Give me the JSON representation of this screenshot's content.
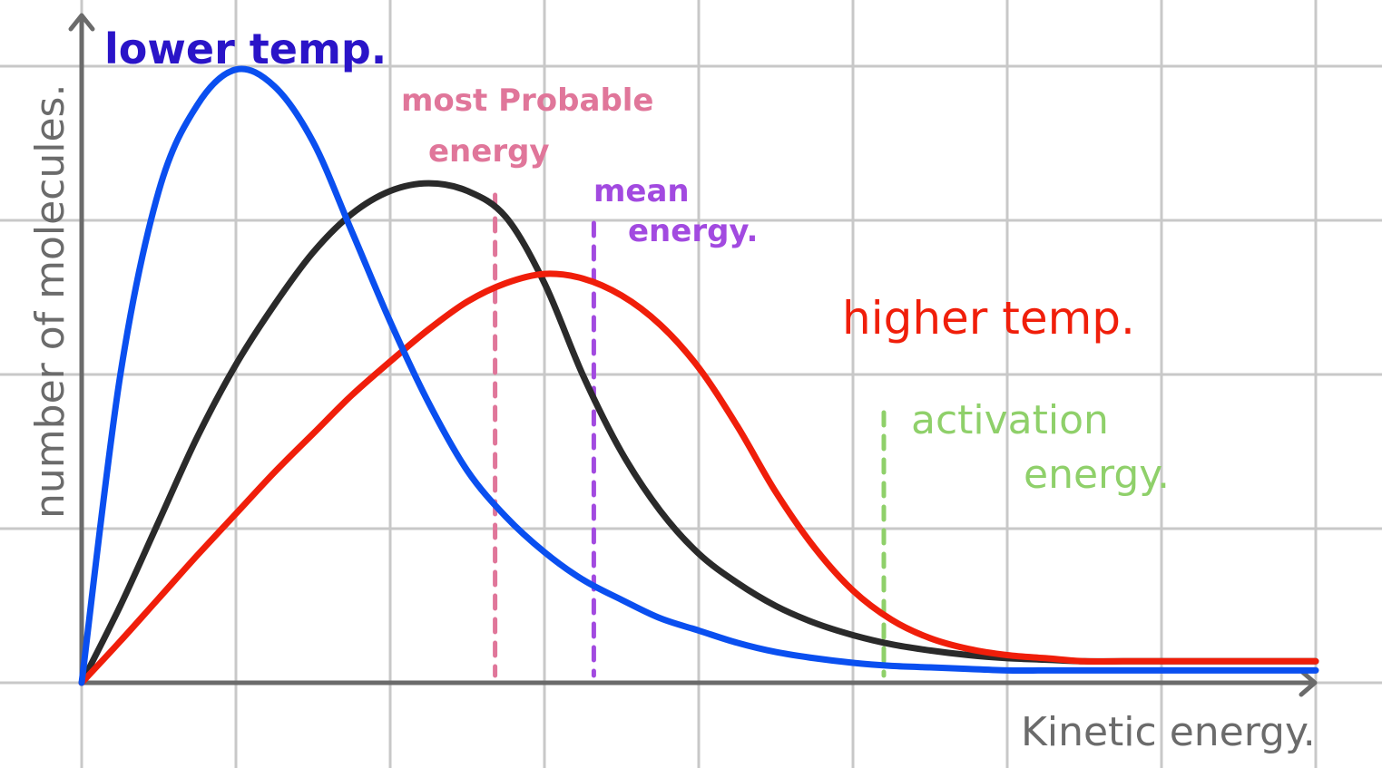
{
  "chart_data": {
    "type": "line",
    "title": "",
    "xlabel": "Kinetic energy.",
    "ylabel": "number of molecules.",
    "grid": true,
    "xlim": [
      0,
      8
    ],
    "ylim": [
      0,
      4
    ],
    "x": [
      0,
      0.25,
      0.5,
      0.75,
      1,
      1.25,
      1.5,
      1.75,
      2,
      2.25,
      2.5,
      2.75,
      3,
      3.25,
      3.5,
      3.75,
      4,
      4.25,
      4.5,
      4.75,
      5,
      5.25,
      5.5,
      5.75,
      6,
      6.25,
      6.5,
      6.75,
      7,
      7.25,
      7.5,
      7.75,
      8
    ],
    "series": [
      {
        "name": "lower temp.",
        "color": "#0a4ff0",
        "values": [
          0,
          2.0,
          3.2,
          3.76,
          3.99,
          3.88,
          3.52,
          2.94,
          2.35,
          1.82,
          1.38,
          1.08,
          0.85,
          0.67,
          0.54,
          0.42,
          0.34,
          0.26,
          0.2,
          0.16,
          0.13,
          0.11,
          0.1,
          0.09,
          0.08,
          0.08,
          0.08,
          0.08,
          0.08,
          0.08,
          0.08,
          0.08,
          0.08
        ]
      },
      {
        "name": "",
        "color": "#2a2a2a",
        "values": [
          0,
          0.5,
          1.05,
          1.6,
          2.07,
          2.46,
          2.8,
          3.05,
          3.2,
          3.25,
          3.2,
          3.03,
          2.6,
          2.0,
          1.5,
          1.12,
          0.84,
          0.65,
          0.5,
          0.39,
          0.31,
          0.25,
          0.21,
          0.18,
          0.16,
          0.15,
          0.14,
          0.14,
          0.14,
          0.14,
          0.14,
          0.14,
          0.14
        ]
      },
      {
        "name": "higher temp.",
        "color": "#f01e0a",
        "values": [
          0,
          0.27,
          0.55,
          0.83,
          1.1,
          1.37,
          1.62,
          1.87,
          2.09,
          2.3,
          2.48,
          2.6,
          2.66,
          2.63,
          2.52,
          2.33,
          2.05,
          1.67,
          1.24,
          0.88,
          0.6,
          0.41,
          0.29,
          0.22,
          0.18,
          0.16,
          0.14,
          0.14,
          0.14,
          0.14,
          0.14,
          0.14,
          0.14
        ]
      }
    ],
    "markers": [
      {
        "label": "most Probable energy",
        "line1": "most Probable",
        "line2": "energy",
        "x": 2.68,
        "color": "#e0769a"
      },
      {
        "label": "mean energy.",
        "line1": "mean",
        "line2": "energy.",
        "x": 3.32,
        "color": "#a24ae0"
      },
      {
        "label": "activation energy.",
        "line1": "activation",
        "line2": "energy.",
        "x": 5.2,
        "color": "#8fd06a"
      }
    ]
  }
}
